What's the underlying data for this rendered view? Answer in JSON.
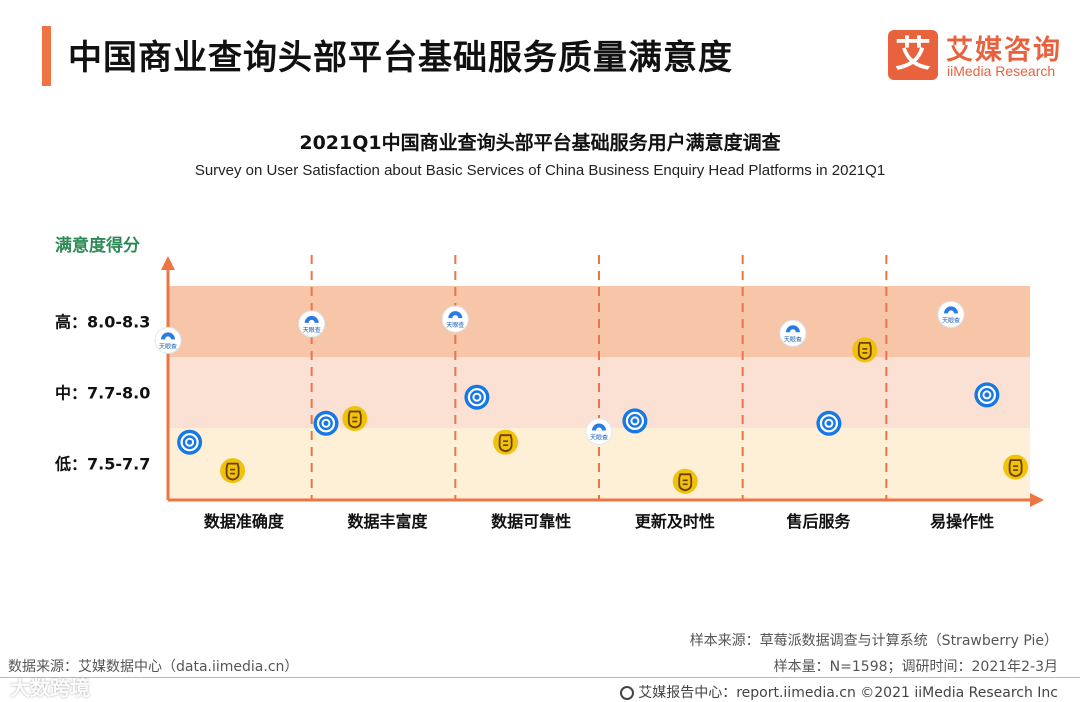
{
  "header": {
    "title": "中国商业查询头部平台基础服务质量满意度",
    "logo_mark": "艾",
    "logo_cn": "艾媒咨询",
    "logo_en": "iiMedia Research"
  },
  "chart_data": {
    "type": "scatter",
    "title": "2021Q1中国商业查询头部平台基础服务用户满意度调查",
    "subtitle": "Survey on User Satisfaction about Basic Services of China Business Enquiry Head Platforms in 2021Q1",
    "ylabel": "满意度得分",
    "xlabel": "",
    "ylim": [
      7.5,
      8.3
    ],
    "bands": [
      {
        "label": "高：8.0-8.3",
        "min": 8.0,
        "max": 8.3,
        "color": "#f7c6a8"
      },
      {
        "label": "中：7.7-8.0",
        "min": 7.7,
        "max": 8.0,
        "color": "#fbe1d3"
      },
      {
        "label": "低：7.5-7.7",
        "min": 7.5,
        "max": 7.7,
        "color": "#fdf0d6"
      }
    ],
    "categories": [
      "数据准确度",
      "数据丰富度",
      "数据可靠性",
      "更新及时性",
      "售后服务",
      "易操作性"
    ],
    "series": [
      {
        "name": "天眼查",
        "icon": "tianyancha-icon",
        "icon_label": "天眼查",
        "color": "#2b7be4",
        "points": [
          {
            "category": 0,
            "slot": -0.2,
            "value": 8.07
          },
          {
            "category": 1,
            "slot": -0.2,
            "value": 8.14
          },
          {
            "category": 2,
            "slot": -0.2,
            "value": 8.16
          },
          {
            "category": 3,
            "slot": -0.2,
            "value": 7.69
          },
          {
            "category": 4,
            "slot": 0.15,
            "value": 8.1
          },
          {
            "category": 5,
            "slot": 0.25,
            "value": 8.18
          }
        ]
      },
      {
        "name": "企查查",
        "icon": "qichacha-icon",
        "icon_label": "",
        "color": "#1677e6",
        "points": [
          {
            "category": 0,
            "slot": -0.05,
            "value": 7.66
          },
          {
            "category": 1,
            "slot": -0.1,
            "value": 7.72
          },
          {
            "category": 2,
            "slot": -0.05,
            "value": 7.83
          },
          {
            "category": 3,
            "slot": 0.05,
            "value": 7.73
          },
          {
            "category": 4,
            "slot": 0.4,
            "value": 7.72
          },
          {
            "category": 5,
            "slot": 0.5,
            "value": 7.84
          }
        ]
      },
      {
        "name": "启信宝",
        "icon": "qixinbao-icon",
        "icon_label": "",
        "color": "#f0c20c",
        "points": [
          {
            "category": 0,
            "slot": 0.25,
            "value": 7.58
          },
          {
            "category": 1,
            "slot": 0.1,
            "value": 7.74
          },
          {
            "category": 2,
            "slot": 0.15,
            "value": 7.66
          },
          {
            "category": 3,
            "slot": 0.4,
            "value": 7.55
          },
          {
            "category": 4,
            "slot": 0.65,
            "value": 8.03
          },
          {
            "category": 5,
            "slot": 0.7,
            "value": 7.59
          }
        ]
      }
    ]
  },
  "footer": {
    "sample_source": "样本来源：草莓派数据调查与计算系统（Strawberry Pie）",
    "sample_size": "样本量：N=1598；调研时间：2021年2-3月",
    "data_source": "数据来源：艾媒数据中心（data.iimedia.cn）",
    "report_center": "艾媒报告中心：report.iimedia.cn ©2021  iiMedia Research  Inc",
    "watermark": "大数跨境"
  },
  "colors": {
    "accent": "#ee7444",
    "axis": "#ee7444",
    "divider": "#ee7444"
  }
}
